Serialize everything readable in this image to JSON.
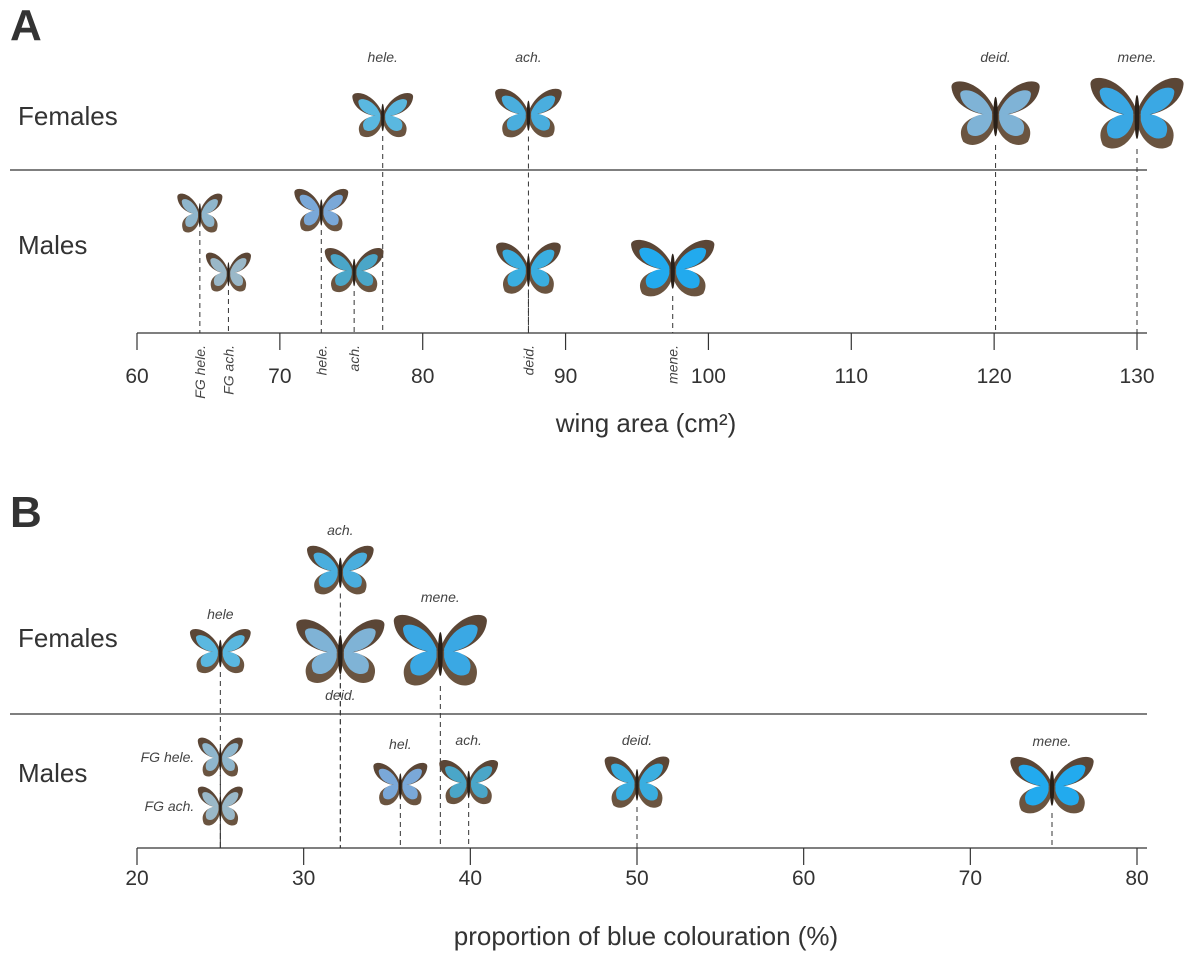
{
  "chart_data": [
    {
      "type": "scatter",
      "panel": "A",
      "xlabel": "wing area (cm²)",
      "xlim": [
        60,
        130
      ],
      "xticks": [
        60,
        70,
        80,
        90,
        100,
        110,
        120,
        130
      ],
      "series": [
        {
          "name": "Females",
          "labels": [
            "hele.",
            "ach.",
            "deid.",
            "mene."
          ],
          "x": [
            77.2,
            87.4,
            120.1,
            130
          ],
          "colors": [
            "#5ab8e0",
            "#4aaede",
            "#7fb3d6",
            "#3aa8e4"
          ]
        },
        {
          "name": "Males",
          "labels": [
            "FG hele.",
            "FG ach.",
            "hele.",
            "ach.",
            "deid.",
            "mene."
          ],
          "x": [
            64.4,
            66.4,
            72.9,
            75.2,
            87.4,
            97.5
          ],
          "colors": [
            "#8fb6cc",
            "#9ab8c8",
            "#7aa8d8",
            "#4aa6c8",
            "#3aaee0",
            "#22aaee"
          ]
        }
      ]
    },
    {
      "type": "scatter",
      "panel": "B",
      "xlabel": "proportion of blue colouration (%)",
      "xlim": [
        20,
        80
      ],
      "xticks": [
        20,
        30,
        40,
        50,
        60,
        70,
        80
      ],
      "series": [
        {
          "name": "Females",
          "labels": [
            "hele",
            "ach.",
            "deid.",
            "mene."
          ],
          "x": [
            25.0,
            32.2,
            32.2,
            38.2
          ],
          "colors": [
            "#5ab8e0",
            "#4aaede",
            "#7fb3d6",
            "#3aa8e4"
          ]
        },
        {
          "name": "Males",
          "labels": [
            "FG hele.",
            "FG ach.",
            "hel.",
            "ach.",
            "deid.",
            "mene."
          ],
          "x": [
            25.0,
            25.0,
            35.8,
            39.9,
            50.0,
            74.9
          ],
          "colors": [
            "#8fb6cc",
            "#9ab8c8",
            "#7aa8d8",
            "#4aa6c8",
            "#3aaee0",
            "#22aaee"
          ]
        }
      ]
    }
  ]
}
